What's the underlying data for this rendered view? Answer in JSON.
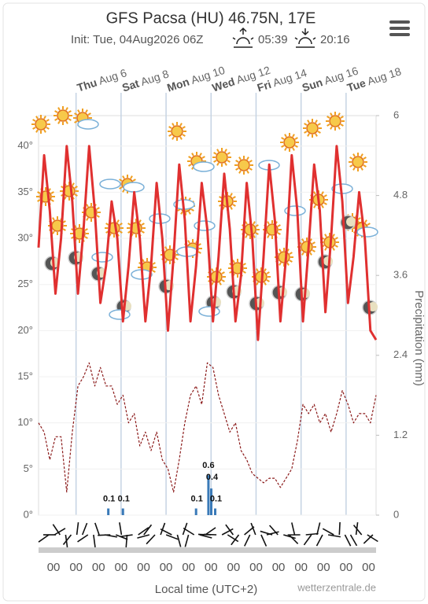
{
  "header": {
    "title": "GFS Pacsa (HU) 46.75N, 17E",
    "init": "Init: Tue, 04Aug2026 06Z",
    "sunrise": "05:39",
    "sunset": "20:16"
  },
  "chart_data": {
    "type": "meteogram",
    "xlim": [
      0,
      60
    ],
    "xticks": [
      {
        "value": 6.667,
        "label": "Thu Aug 6"
      },
      {
        "value": 14.667,
        "label": "Sat Aug 8"
      },
      {
        "value": 22.667,
        "label": "Mon Aug 10"
      },
      {
        "value": 30.667,
        "label": "Wed Aug 12"
      },
      {
        "value": 38.667,
        "label": "Fri Aug 14"
      },
      {
        "value": 46.667,
        "label": "Sun Aug 16"
      },
      {
        "value": 54.667,
        "label": "Tue Aug 18"
      }
    ],
    "xticks_bottom": [
      {
        "value": 2.667,
        "label": "00"
      },
      {
        "value": 6.667,
        "label": "00"
      },
      {
        "value": 10.667,
        "label": "00"
      },
      {
        "value": 14.667,
        "label": "00"
      },
      {
        "value": 18.667,
        "label": "00"
      },
      {
        "value": 22.667,
        "label": "00"
      },
      {
        "value": 26.667,
        "label": "00"
      },
      {
        "value": 30.667,
        "label": "00"
      },
      {
        "value": 34.667,
        "label": "00"
      },
      {
        "value": 38.667,
        "label": "00"
      },
      {
        "value": 42.667,
        "label": "00"
      },
      {
        "value": 46.667,
        "label": "00"
      },
      {
        "value": 50.667,
        "label": "00"
      },
      {
        "value": 54.667,
        "label": "00"
      },
      {
        "value": 58.667,
        "label": "00"
      }
    ],
    "x_label": "Local time (UTC+2)",
    "ylim": [
      0,
      43.3
    ],
    "yticks": [
      {
        "value": 0,
        "label": "0°"
      },
      {
        "value": 5,
        "label": "5°"
      },
      {
        "value": 10,
        "label": "10°"
      },
      {
        "value": 15,
        "label": "15°"
      },
      {
        "value": 20,
        "label": "20°"
      },
      {
        "value": 25,
        "label": "25°"
      },
      {
        "value": 30,
        "label": "30°"
      },
      {
        "value": 35,
        "label": "35°"
      },
      {
        "value": 40,
        "label": "40°"
      }
    ],
    "y2lim": [
      0,
      6
    ],
    "y2ticks": [
      0,
      1.2,
      2.4,
      3.6,
      4.8,
      6
    ],
    "y2_label": "Precipitation (mm)",
    "series": [
      {
        "color": "#e03030",
        "values": [
          29,
          39,
          33,
          24,
          30,
          40,
          34,
          24,
          31,
          40,
          33,
          23,
          27,
          34,
          30,
          21,
          27,
          35,
          30,
          21,
          27,
          36,
          30,
          20,
          28,
          38,
          32,
          21,
          27,
          36,
          31,
          21,
          28,
          37,
          31,
          21,
          26,
          36,
          30,
          19,
          28,
          38,
          32,
          21,
          28,
          39,
          33,
          21,
          29,
          38,
          33,
          22,
          30,
          40,
          34,
          23,
          28,
          35,
          30,
          20,
          19
        ]
      },
      {
        "color": "#8b1a1a",
        "dashed": true,
        "values": [
          10,
          9,
          6,
          8.5,
          8.5,
          2.5,
          9,
          14,
          15,
          16.5,
          14,
          16,
          14,
          14,
          12,
          13,
          10,
          11,
          7.5,
          9,
          7,
          9,
          6,
          5,
          2.5,
          6,
          10,
          13,
          14,
          12,
          16.5,
          16,
          13,
          11,
          9,
          10,
          7,
          6,
          4.5,
          4,
          3.5,
          4,
          4,
          3,
          4,
          5,
          8,
          12,
          11,
          12,
          10,
          11,
          9,
          11,
          13.5,
          12,
          10,
          11,
          11,
          10,
          13
        ]
      },
      {
        "color": "#3a7ab8",
        "axis": "y2",
        "x": [
          12.4,
          15.0,
          28.0,
          30.2,
          30.7,
          31.4
        ],
        "values": [
          0.1,
          0.1,
          0.1,
          0.6,
          0.4,
          0.1
        ]
      }
    ],
    "source": "wetterzentrale.de"
  }
}
